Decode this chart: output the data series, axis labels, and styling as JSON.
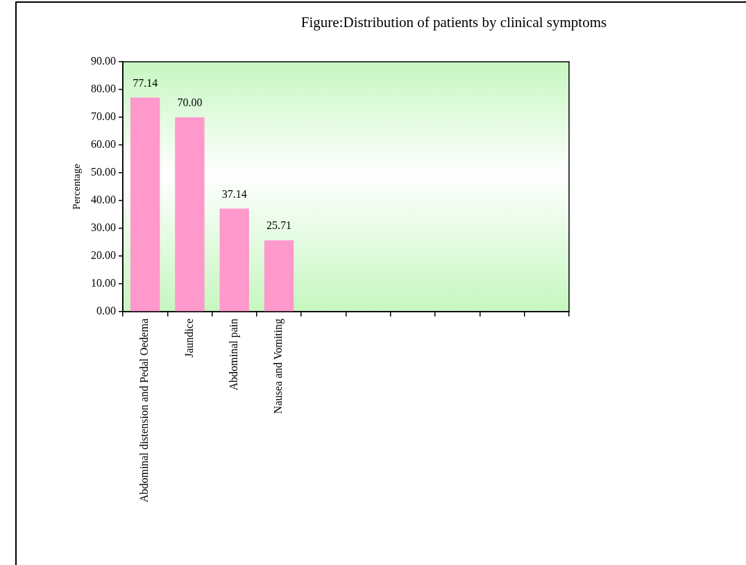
{
  "chart_data": {
    "type": "bar",
    "title": "Figure:Distribution of patients by clinical symptoms",
    "ylabel": "Percentage",
    "categories": [
      "Abdominal distension and Pedal Oedema",
      "Jaundice",
      "Abdominal pain",
      "Nausea and Vomiting",
      null,
      null,
      null,
      null,
      null,
      null
    ],
    "values": [
      77.14,
      70,
      37.14,
      25.71,
      null,
      null,
      null,
      null,
      null,
      null
    ],
    "value_labels": [
      "77.14",
      "70.00",
      "37.14",
      "25.71",
      null,
      null,
      null,
      null,
      null,
      null
    ],
    "color": "#ff99cc",
    "ylim": [
      0,
      90
    ],
    "yticks": [
      {
        "value": 0,
        "label": "0.00"
      },
      {
        "value": 10,
        "label": "10.00"
      },
      {
        "value": 20,
        "label": "20.00"
      },
      {
        "value": 30,
        "label": "30.00"
      },
      {
        "value": 40,
        "label": "40.00"
      },
      {
        "value": 50,
        "label": "50.00"
      },
      {
        "value": 60,
        "label": "60.00"
      },
      {
        "value": 70,
        "label": "70.00"
      },
      {
        "value": 80,
        "label": "80.00"
      },
      {
        "value": 90,
        "label": "90.00"
      }
    ]
  }
}
